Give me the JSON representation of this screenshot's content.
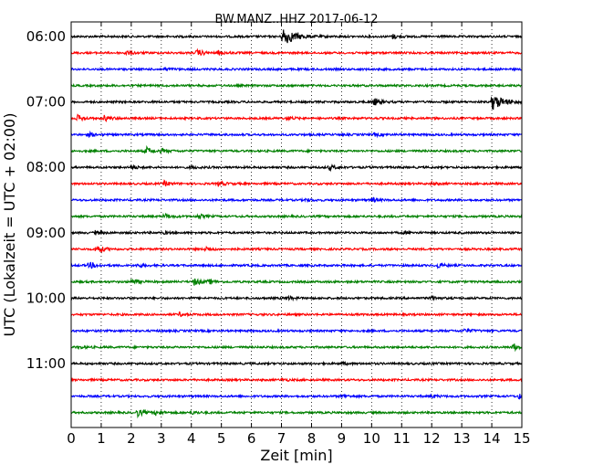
{
  "chart_data": {
    "type": "line",
    "title": "BW.MANZ..HHZ 2017-06-12",
    "xlabel": "Zeit  [min]",
    "ylabel": "UTC (Lokalzeit = UTC + 02:00)",
    "xlim": [
      0,
      15
    ],
    "x_ticks": [
      "0",
      "1",
      "2",
      "3",
      "4",
      "5",
      "6",
      "7",
      "8",
      "9",
      "10",
      "11",
      "12",
      "13",
      "14",
      "15"
    ],
    "y_ticks": [
      {
        "label": "06:00",
        "row": 0
      },
      {
        "label": "07:00",
        "row": 4
      },
      {
        "label": "08:00",
        "row": 8
      },
      {
        "label": "09:00",
        "row": 12
      },
      {
        "label": "10:00",
        "row": 16
      },
      {
        "label": "11:00",
        "row": 20
      }
    ],
    "grid": "vertical-dotted",
    "row_minutes": 15,
    "trace_colors": [
      "#000000",
      "#ff0000",
      "#0000ff",
      "#008000"
    ],
    "traces": [
      {
        "start": "06:00",
        "events": [
          {
            "t": 7.05,
            "a": 10
          },
          {
            "t": 10.7,
            "a": 2.2
          }
        ]
      },
      {
        "start": "06:15",
        "events": [
          {
            "t": 1.8,
            "a": 2.5
          },
          {
            "t": 4.2,
            "a": 3.5
          },
          {
            "t": 4.9,
            "a": 2
          }
        ]
      },
      {
        "start": "06:30",
        "events": [
          {
            "t": 3.1,
            "a": 1.5
          }
        ]
      },
      {
        "start": "06:45",
        "events": []
      },
      {
        "start": "07:00",
        "events": [
          {
            "t": 14.0,
            "a": 9
          },
          {
            "t": 10,
            "a": 1.5
          },
          {
            "t": 10.1,
            "a": 3
          }
        ]
      },
      {
        "start": "07:15",
        "events": [
          {
            "t": 0.2,
            "a": 3.5
          },
          {
            "t": 1.1,
            "a": 3
          },
          {
            "t": 7.2,
            "a": 2
          }
        ]
      },
      {
        "start": "07:30",
        "events": [
          {
            "t": 0.6,
            "a": 1.8
          },
          {
            "t": 10.1,
            "a": 1.5
          }
        ]
      },
      {
        "start": "07:45",
        "events": [
          {
            "t": 2.5,
            "a": 4
          },
          {
            "t": 3.0,
            "a": 2
          }
        ]
      },
      {
        "start": "08:00",
        "events": [
          {
            "t": 2.0,
            "a": 2
          },
          {
            "t": 4.0,
            "a": 1.5
          },
          {
            "t": 8.6,
            "a": 2.5
          }
        ]
      },
      {
        "start": "08:15",
        "events": [
          {
            "t": 3.1,
            "a": 2.5
          },
          {
            "t": 4.9,
            "a": 2.5
          },
          {
            "t": 12.0,
            "a": 1.5
          }
        ]
      },
      {
        "start": "08:30",
        "events": [
          {
            "t": 7.8,
            "a": 1.5
          },
          {
            "t": 10.0,
            "a": 2.5
          }
        ]
      },
      {
        "start": "08:45",
        "events": [
          {
            "t": 3.1,
            "a": 3
          },
          {
            "t": 4.2,
            "a": 2.5
          }
        ]
      },
      {
        "start": "09:00",
        "events": [
          {
            "t": 0.8,
            "a": 2
          },
          {
            "t": 3.1,
            "a": 1.2
          },
          {
            "t": 11.1,
            "a": 1.2
          }
        ]
      },
      {
        "start": "09:15",
        "events": [
          {
            "t": 0.85,
            "a": 5
          },
          {
            "t": 4.5,
            "a": 2.5
          }
        ]
      },
      {
        "start": "09:30",
        "events": [
          {
            "t": 0.6,
            "a": 3.5
          },
          {
            "t": 2.2,
            "a": 1.8
          },
          {
            "t": 12.2,
            "a": 2.5
          }
        ]
      },
      {
        "start": "09:45",
        "events": [
          {
            "t": 2.0,
            "a": 3
          },
          {
            "t": 4.1,
            "a": 4
          },
          {
            "t": 4.6,
            "a": 2
          }
        ]
      },
      {
        "start": "10:00",
        "events": [
          {
            "t": 7.2,
            "a": 1.8
          },
          {
            "t": 12.0,
            "a": 2.2
          }
        ]
      },
      {
        "start": "10:15",
        "events": [
          {
            "t": 3.6,
            "a": 1.8
          }
        ]
      },
      {
        "start": "10:30",
        "events": [
          {
            "t": 13.1,
            "a": 2.5
          }
        ]
      },
      {
        "start": "10:45",
        "events": [
          {
            "t": 0.3,
            "a": 1.2
          },
          {
            "t": 14.7,
            "a": 4
          }
        ]
      },
      {
        "start": "11:00",
        "events": [
          {
            "t": 9.0,
            "a": 1.2
          }
        ]
      },
      {
        "start": "11:15",
        "events": [
          {
            "t": 7.0,
            "a": 1.2
          }
        ]
      },
      {
        "start": "11:30",
        "events": [
          {
            "t": 9.0,
            "a": 1.5
          },
          {
            "t": 12.0,
            "a": 1.5
          },
          {
            "t": 14.9,
            "a": 2.5
          }
        ]
      },
      {
        "start": "11:45",
        "events": [
          {
            "t": 2.2,
            "a": 4
          },
          {
            "t": 2.8,
            "a": 2.5
          },
          {
            "t": 4.0,
            "a": 1.5
          }
        ]
      }
    ]
  }
}
